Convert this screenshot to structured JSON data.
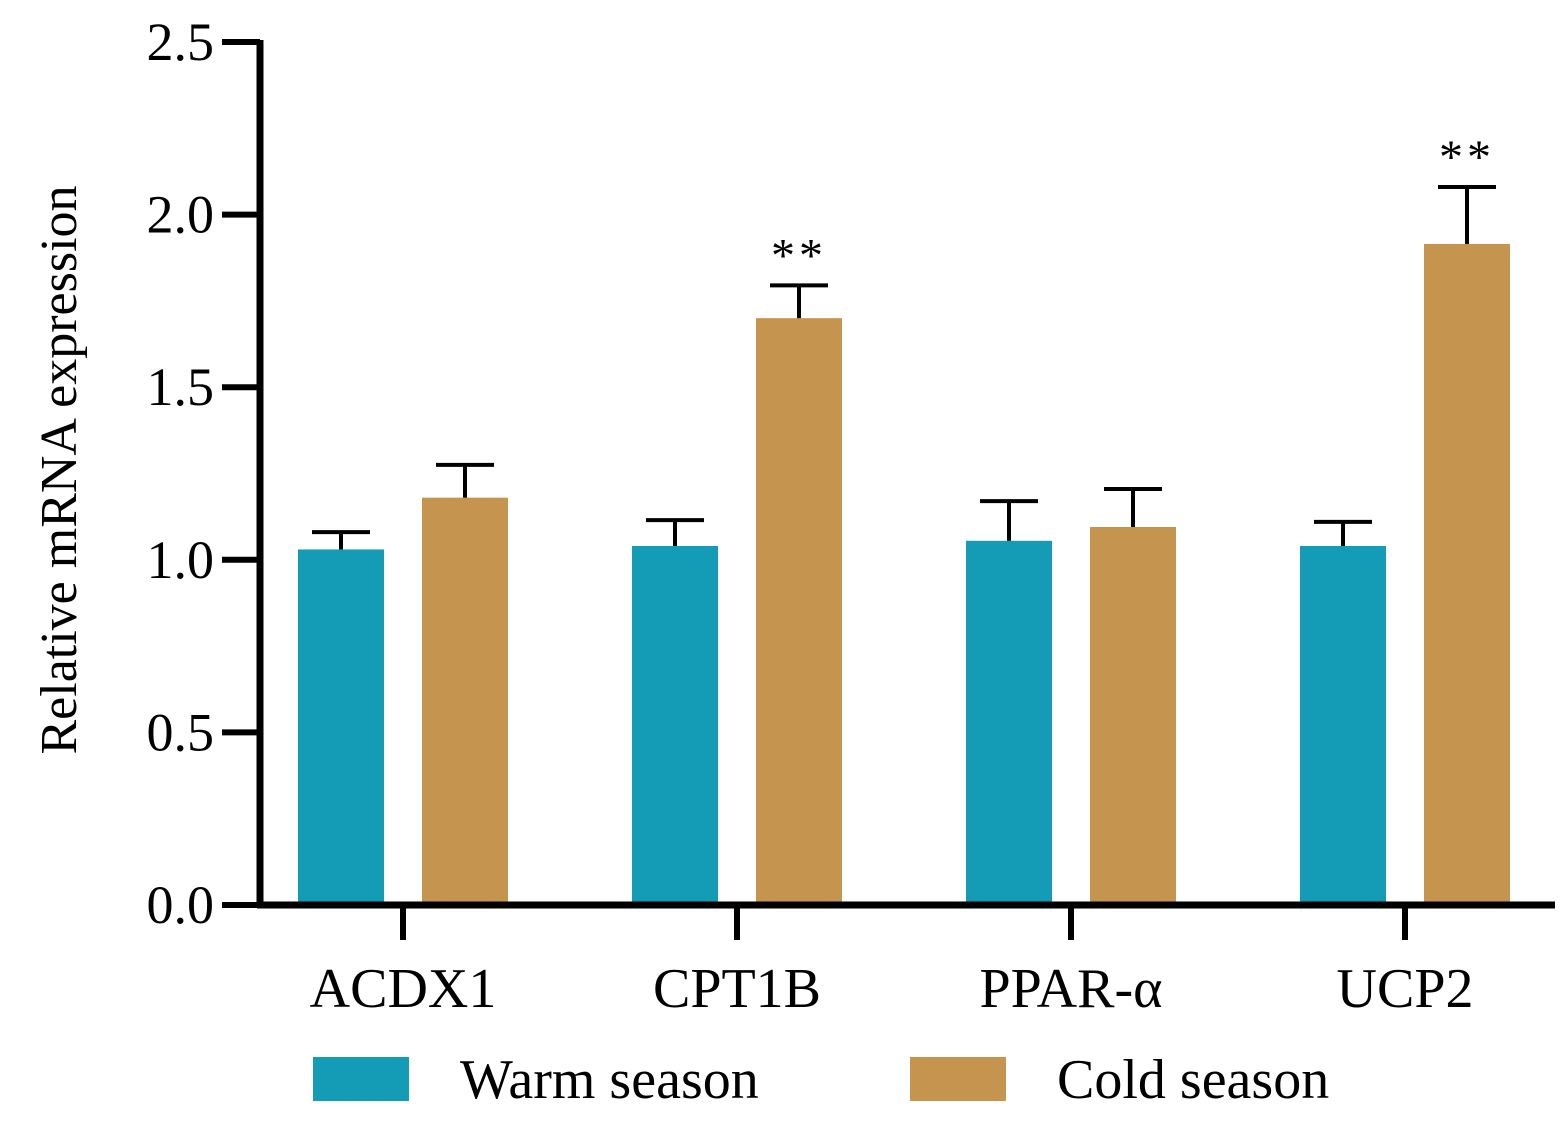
{
  "chart_data": {
    "type": "bar",
    "title": "",
    "xlabel": "",
    "ylabel": "Relative mRNA expression",
    "ylim": [
      0,
      2.5
    ],
    "yticks": [
      "0.0",
      "0.5",
      "1.0",
      "1.5",
      "2.0",
      "2.5"
    ],
    "categories": [
      "ACDX1",
      "CPT1B",
      "PPAR-α",
      "UCP2"
    ],
    "series": [
      {
        "name": "Warm season",
        "color": "#149bb5",
        "values": [
          1.03,
          1.04,
          1.055,
          1.04
        ],
        "errors": [
          0.05,
          0.075,
          0.115,
          0.07
        ]
      },
      {
        "name": "Cold season",
        "color": "#c59550",
        "values": [
          1.18,
          1.7,
          1.095,
          1.915
        ],
        "errors": [
          0.095,
          0.095,
          0.11,
          0.165
        ]
      }
    ],
    "annotations": [
      {
        "category": "CPT1B",
        "series": "Cold season",
        "text": "**"
      },
      {
        "category": "UCP2",
        "series": "Cold season",
        "text": "**"
      }
    ],
    "legend_position": "bottom",
    "grid": false
  }
}
